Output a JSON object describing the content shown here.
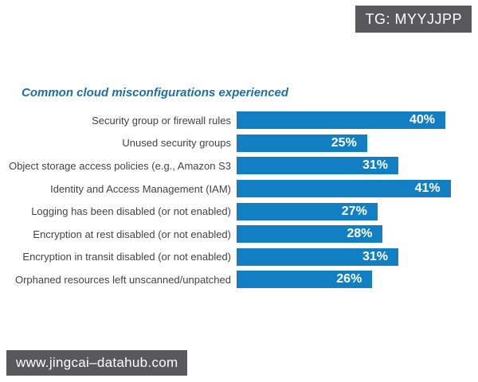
{
  "watermarks": {
    "tag_badge": "TG: MYYJJPP",
    "footer_url": "www.jingcai–datahub.com"
  },
  "chart_data": {
    "type": "bar",
    "orientation": "horizontal",
    "title": "Common cloud misconfigurations experienced",
    "categories": [
      "Security group or firewall rules",
      "Unused security groups",
      "Object storage access policies (e.g., Amazon S3",
      "Identity and Access Management (IAM)",
      "Logging has been disabled (or not enabled)",
      "Encryption at rest disabled (or not enabled)",
      "Encryption in transit disabled (or not enabled)",
      "Orphaned resources left unscanned/unpatched"
    ],
    "values": [
      40,
      25,
      31,
      41,
      27,
      28,
      31,
      26
    ],
    "value_labels": [
      "40%",
      "25%",
      "31%",
      "41%",
      "27%",
      "28%",
      "31%",
      "26%"
    ],
    "value_suffix": "%",
    "xlim": [
      0,
      45
    ],
    "grid": false,
    "legend": false,
    "bar_color": "#127fc2",
    "value_label_color": "#ffffff",
    "title_color": "#1d6fa8",
    "category_label_color": "#434343"
  }
}
